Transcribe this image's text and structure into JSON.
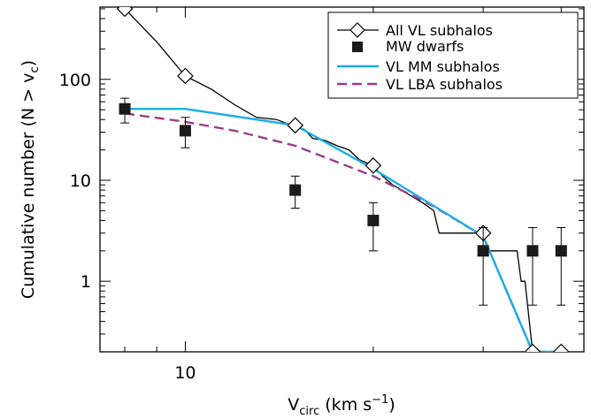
{
  "chart_data": {
    "type": "line",
    "xlabel": {
      "main": "V",
      "sub": "circ",
      "unit_pre": " (km s",
      "unit_sup": "−1",
      "unit_post": ")"
    },
    "ylabel": {
      "main": "Cumulative number (N > v",
      "sub": "c",
      "post": ")"
    },
    "x_scale": "log",
    "y_scale": "log",
    "xlim": [
      7.3,
      43.5
    ],
    "ylim": [
      0.2,
      520
    ],
    "x_ticks_labeled": [
      10
    ],
    "x_tick_labels": [
      "10"
    ],
    "y_ticks_labeled": [
      1,
      10,
      100
    ],
    "y_tick_labels": [
      "1",
      "10",
      "100"
    ],
    "grid": false,
    "legend_position": "top-right",
    "legend": [
      {
        "label": "All VL subhalos",
        "style": "line-diamond",
        "color": "#000000"
      },
      {
        "label": "MW dwarfs",
        "style": "square",
        "color": "#000000"
      },
      {
        "label": "VL MM subhalos",
        "style": "solid",
        "color": "#1aaee5"
      },
      {
        "label": "VL LBA subhalos",
        "style": "dashed",
        "color": "#9b3d8a"
      }
    ],
    "series": [
      {
        "name": "All VL subhalos",
        "color": "#000000",
        "line": [
          [
            8,
            500
          ],
          [
            9,
            235
          ],
          [
            10,
            108
          ],
          [
            11,
            80
          ],
          [
            12,
            56
          ],
          [
            13,
            42
          ],
          [
            14,
            40
          ],
          [
            15,
            34
          ],
          [
            15.5,
            32
          ],
          [
            16,
            26
          ],
          [
            16.7,
            25
          ],
          [
            17.5,
            22
          ],
          [
            18.3,
            20
          ],
          [
            19,
            16
          ],
          [
            20,
            14
          ],
          [
            20.7,
            11
          ],
          [
            21.5,
            9
          ],
          [
            22.2,
            8
          ],
          [
            23,
            7
          ],
          [
            24,
            6
          ],
          [
            25,
            5
          ],
          [
            25.5,
            3
          ],
          [
            28,
            3
          ],
          [
            30,
            3
          ],
          [
            30.5,
            2
          ],
          [
            34,
            2
          ],
          [
            34.5,
            1
          ],
          [
            35,
            1
          ],
          [
            36,
            0.2
          ],
          [
            40,
            0.2
          ]
        ],
        "markers": [
          [
            8,
            500
          ],
          [
            10,
            108
          ],
          [
            15,
            35
          ],
          [
            20,
            14
          ],
          [
            30,
            3
          ],
          [
            36,
            0.2
          ],
          [
            40,
            0.2
          ]
        ]
      },
      {
        "name": "MW dwarfs",
        "color": "#000000",
        "points": [
          {
            "x": 8,
            "y": 51,
            "lo": 37,
            "hi": 65
          },
          {
            "x": 10,
            "y": 31,
            "lo": 21,
            "hi": 42
          },
          {
            "x": 15,
            "y": 8,
            "lo": 5.3,
            "hi": 11
          },
          {
            "x": 20,
            "y": 4,
            "lo": 2,
            "hi": 6
          },
          {
            "x": 30,
            "y": 2,
            "lo": 0.58,
            "hi": 3.4
          },
          {
            "x": 36,
            "y": 2,
            "lo": 0.58,
            "hi": 3.4
          },
          {
            "x": 40,
            "y": 2,
            "lo": 0.58,
            "hi": 3.4
          }
        ]
      },
      {
        "name": "VL MM subhalos",
        "color": "#1aaee5",
        "line": [
          [
            8,
            51
          ],
          [
            10,
            51
          ],
          [
            15,
            35
          ],
          [
            20,
            13
          ],
          [
            30,
            2.8
          ],
          [
            36,
            0.2
          ],
          [
            40,
            0.2
          ]
        ]
      },
      {
        "name": "VL LBA subhalos",
        "color": "#9b3d8a",
        "dashed": true,
        "line": [
          [
            8,
            46
          ],
          [
            10,
            38
          ],
          [
            12,
            31
          ],
          [
            15,
            22
          ],
          [
            20,
            11
          ],
          [
            25,
            5.5
          ],
          [
            30,
            2.8
          ],
          [
            36,
            0.2
          ],
          [
            40,
            0.2
          ]
        ]
      }
    ]
  }
}
